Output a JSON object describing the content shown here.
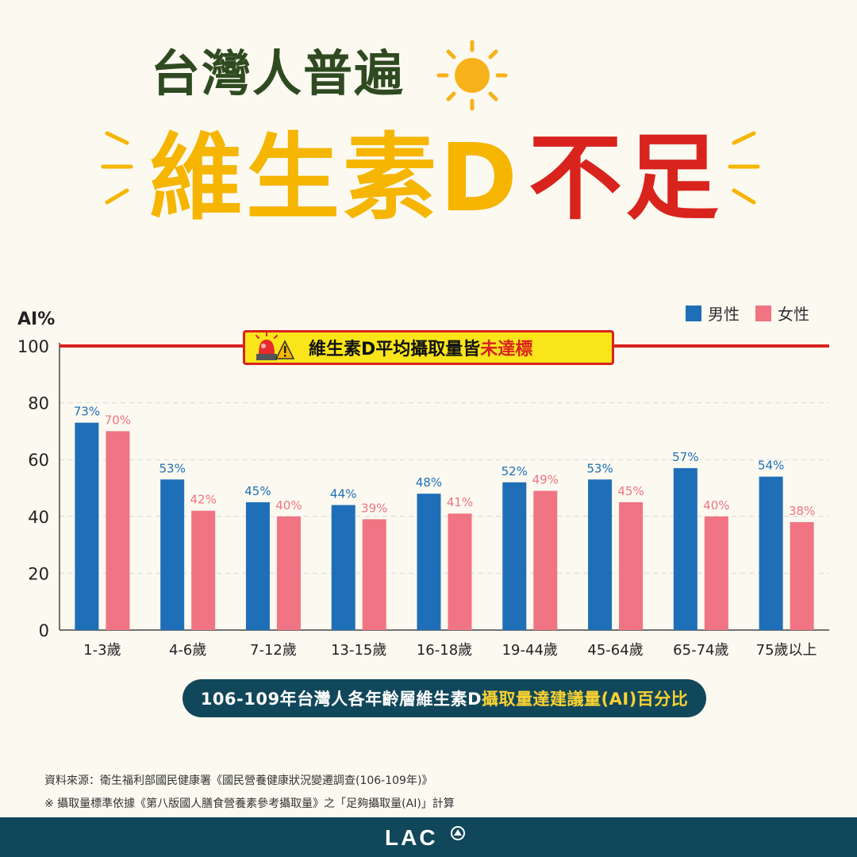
{
  "title": {
    "line1": "台灣人普遍",
    "line2_main": "維生素D",
    "line2_emph": "不足"
  },
  "banner": {
    "text_before": "維生素D平均攝取量皆",
    "text_emph": "未達標"
  },
  "caption": {
    "text_before": "106-109年台灣人各年齡層維生素D",
    "text_emph": "攝取量達建議量(AI)百分比"
  },
  "source": {
    "line1": "資料來源：衛生福利部國民健康署《國民營養健康狀況變遷調查(106-109年)》",
    "line2": "※ 攝取量標準依據《第八版國人膳食營養素參考攝取量》之「足夠攝取量(AI)」計算"
  },
  "footer": {
    "logo_text": "LAC"
  },
  "colors": {
    "male": "#1f6fb8",
    "female": "#f07483",
    "reference_line": "#d9231d",
    "title_green": "#2f4a20",
    "title_yellow": "#f5b500",
    "title_red": "#d9231d",
    "footer_bg": "#11475a"
  },
  "chart_data": {
    "type": "bar",
    "ylabel": "AI%",
    "ylim": [
      0,
      100
    ],
    "yticks": [
      0,
      20,
      40,
      60,
      80,
      100
    ],
    "grid": true,
    "legend_position": "top-right",
    "reference_line": 100,
    "categories": [
      "1-3歲",
      "4-6歲",
      "7-12歲",
      "13-15歲",
      "16-18歲",
      "19-44歲",
      "45-64歲",
      "65-74歲",
      "75歲以上"
    ],
    "series": [
      {
        "name": "男性",
        "values": [
          73,
          53,
          45,
          44,
          48,
          52,
          53,
          57,
          54
        ],
        "labels": [
          "73%",
          "53%",
          "45%",
          "44%",
          "48%",
          "52%",
          "53%",
          "57%",
          "54%"
        ]
      },
      {
        "name": "女性",
        "values": [
          70,
          42,
          40,
          39,
          41,
          49,
          45,
          40,
          38
        ],
        "labels": [
          "70%",
          "42%",
          "40%",
          "39%",
          "41%",
          "49%",
          "45%",
          "40%",
          "38%"
        ]
      }
    ]
  }
}
